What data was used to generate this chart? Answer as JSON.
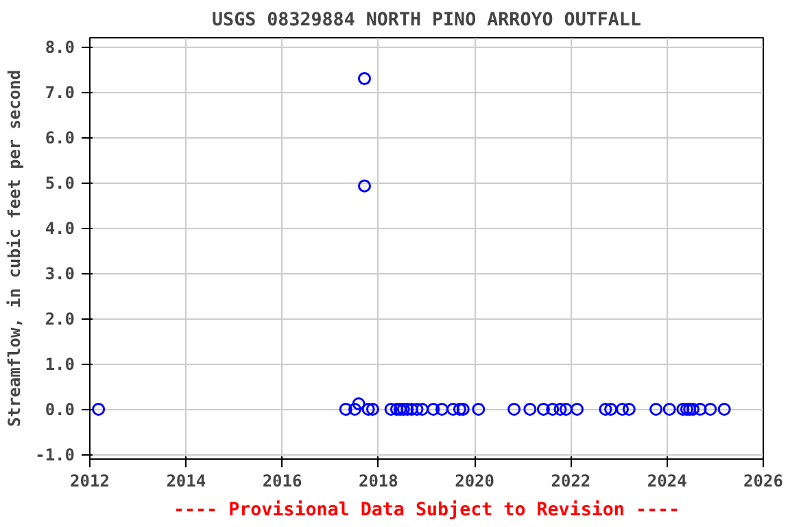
{
  "chart_data": {
    "type": "scatter",
    "title": "USGS 08329884 NORTH PINO ARROYO OUTFALL",
    "ylabel": "Streamflow, in cubic feet per second",
    "x": [
      2012.18,
      2017.32,
      2017.51,
      2017.59,
      2017.71,
      2017.71,
      2017.79,
      2017.88,
      2018.26,
      2018.38,
      2018.45,
      2018.52,
      2018.6,
      2018.69,
      2018.8,
      2018.91,
      2019.14,
      2019.32,
      2019.55,
      2019.69,
      2019.76,
      2020.08,
      2020.82,
      2021.15,
      2021.43,
      2021.62,
      2021.78,
      2021.9,
      2022.13,
      2022.72,
      2022.83,
      2023.07,
      2023.21,
      2023.77,
      2024.05,
      2024.33,
      2024.41,
      2024.47,
      2024.54,
      2024.69,
      2024.9,
      2025.19
    ],
    "series": [
      {
        "color": "#0000ff",
        "values": [
          0,
          0,
          0,
          0.12,
          7.3,
          4.93,
          0,
          0,
          0,
          0,
          0,
          0,
          0,
          0,
          0,
          0,
          0,
          0,
          0,
          0,
          0,
          0,
          0,
          0,
          0,
          0,
          0,
          0,
          0,
          0,
          0,
          0,
          0,
          0,
          0,
          0,
          0,
          0,
          0,
          0,
          0,
          0
        ]
      }
    ],
    "xlim": [
      2012,
      2026
    ],
    "xticks": [
      2012,
      2014,
      2016,
      2018,
      2020,
      2022,
      2024,
      2026
    ],
    "ylim": [
      -1.1,
      8.2
    ],
    "yticks": [
      {
        "value": -1,
        "label": "-1.0"
      },
      {
        "value": 0,
        "label": "0.0"
      },
      {
        "value": 1,
        "label": "1.0"
      },
      {
        "value": 2,
        "label": "2.0"
      },
      {
        "value": 3,
        "label": "3.0"
      },
      {
        "value": 4,
        "label": "4.0"
      },
      {
        "value": 5,
        "label": "5.0"
      },
      {
        "value": 6,
        "label": "6.0"
      },
      {
        "value": 7,
        "label": "7.0"
      },
      {
        "value": 8,
        "label": "8.0"
      }
    ],
    "grid": true,
    "marker": "circle",
    "annotations": [
      "---- Provisional Data Subject to Revision ----"
    ]
  }
}
